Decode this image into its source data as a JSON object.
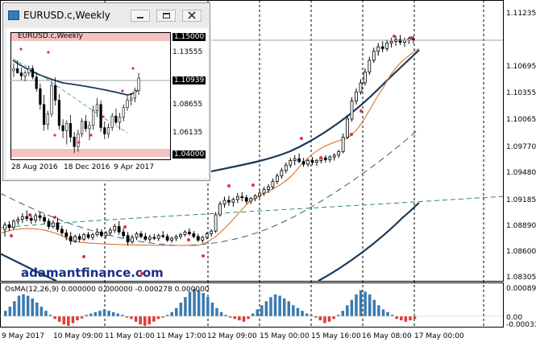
{
  "main": {
    "symbol": "EURUSD.c",
    "timeframe": "Weekly",
    "watermark": "adamantfinance.com",
    "price_axis": {
      "labels": [
        "1.11235",
        "1.10965",
        "1.10695",
        "1.10355",
        "1.10065",
        "1.09770",
        "1.09480",
        "1.09185",
        "1.08890",
        "1.08600",
        "1.08305"
      ],
      "current_price": "1.10939"
    },
    "time_axis": [
      "9 May 2017",
      "10 May 09:00",
      "11 May 01:00",
      "11 May 17:00",
      "12 May 09:00",
      "15 May 00:00",
      "15 May 16:00",
      "16 May 08:00",
      "17 May 00:00"
    ]
  },
  "osma": {
    "title": "OsMA(12,26,9) 0.000000 0.000000 -0.000278 0.000000",
    "axis_labels": [
      "0.000897",
      "0.00",
      "-0.00033"
    ]
  },
  "mini": {
    "window_title": "EURUSD.c,Weekly",
    "chart_title": "EURUSD.c,Weekly",
    "price_labels": [
      "1.15000",
      "1.13555",
      "1.10939",
      "1.08655",
      "1.06135",
      "1.04000"
    ],
    "time_labels": [
      "28 Aug 2016",
      "18 Dec 2016",
      "9 Apr 2017"
    ]
  },
  "colors": {
    "bull_candle": "#ffffff",
    "bear_candle": "#000000",
    "fractal_marker": "#e0304a",
    "ma_fast": "#d2691e",
    "ma_slow_band": "#1b3a5a",
    "ma_dashed": "#2f5f87",
    "ma_green_dashed": "#2e8b57",
    "osma_positive": "#3a7ab0",
    "osma_negative": "#e03a3a",
    "highlight_zone": "#f4c2c2"
  },
  "icons": [
    "chart-window-icon",
    "minimize-icon",
    "restore-icon",
    "close-icon"
  ]
}
